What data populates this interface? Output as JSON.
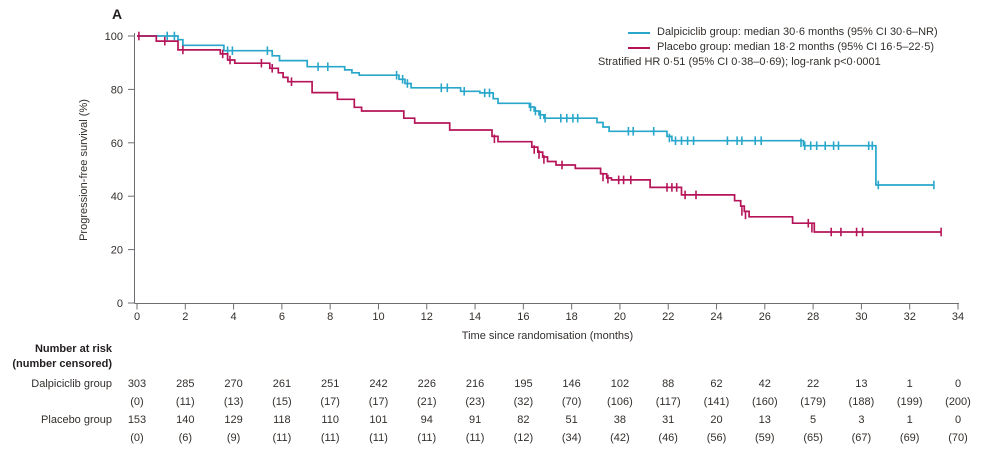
{
  "panel_label": "A",
  "colors": {
    "dalpiciclib": "#29a7cb",
    "placebo": "#b51458",
    "axis": "#6d6e71",
    "text": "#332f2c"
  },
  "legend": {
    "entries": [
      {
        "label": "Dalpiciclib group: median 30·6 months (95% CI 30·6–NR)",
        "color_key": "dalpiciclib"
      },
      {
        "label": "Placebo group: median 18·2 months (95% CI 16·5–22·5)",
        "color_key": "placebo"
      }
    ],
    "note": "Stratified HR 0·51 (95% CI 0·38–0·69); log-rank p<0·0001"
  },
  "chart_data": {
    "type": "line",
    "subtype": "kaplan-meier-step",
    "title": "",
    "xlabel": "Time since randomisation (months)",
    "ylabel": "Progression-free survival (%)",
    "xlim": [
      0,
      34
    ],
    "ylim": [
      0,
      100
    ],
    "xticks": [
      0,
      2,
      4,
      6,
      8,
      10,
      12,
      14,
      16,
      18,
      20,
      22,
      24,
      26,
      28,
      30,
      32,
      34
    ],
    "yticks": [
      0,
      20,
      40,
      60,
      80,
      100
    ],
    "grid": false,
    "legend_position": "top-right",
    "series": [
      {
        "name": "Dalpiciclib group",
        "color": "#29a7cb",
        "steps": [
          [
            0,
            100
          ],
          [
            1.7,
            98.6
          ],
          [
            1.9,
            96.5
          ],
          [
            3.6,
            94.5
          ],
          [
            5.6,
            92.6
          ],
          [
            5.9,
            90.8
          ],
          [
            7.05,
            88.5
          ],
          [
            8.6,
            87.3
          ],
          [
            8.9,
            86.2
          ],
          [
            9.2,
            85.3
          ],
          [
            10.85,
            83.8
          ],
          [
            11.1,
            82.2
          ],
          [
            11.35,
            80.6
          ],
          [
            13.4,
            79.3
          ],
          [
            14.2,
            78.7
          ],
          [
            14.75,
            76.5
          ],
          [
            14.95,
            74.8
          ],
          [
            16.25,
            73.4
          ],
          [
            16.45,
            71.9
          ],
          [
            16.65,
            70.5
          ],
          [
            16.85,
            69.2
          ],
          [
            19.05,
            67.6
          ],
          [
            19.3,
            65.9
          ],
          [
            19.55,
            64.3
          ],
          [
            21.95,
            62.4
          ],
          [
            22.15,
            60.8
          ],
          [
            27.6,
            58.9
          ],
          [
            30.6,
            44.2
          ],
          [
            33.0,
            44.2
          ]
        ],
        "censors": [
          [
            1.25,
            100
          ],
          [
            1.55,
            100
          ],
          [
            3.75,
            94.5
          ],
          [
            3.95,
            94.5
          ],
          [
            5.4,
            94.5
          ],
          [
            7.5,
            88.5
          ],
          [
            7.9,
            88.5
          ],
          [
            10.75,
            85.3
          ],
          [
            11.0,
            83.8
          ],
          [
            11.2,
            82.2
          ],
          [
            12.6,
            80.6
          ],
          [
            12.85,
            80.6
          ],
          [
            13.55,
            79.3
          ],
          [
            14.4,
            78.7
          ],
          [
            14.6,
            78.7
          ],
          [
            16.3,
            73.4
          ],
          [
            16.5,
            71.9
          ],
          [
            16.7,
            70.5
          ],
          [
            16.9,
            69.2
          ],
          [
            17.55,
            69.2
          ],
          [
            17.8,
            69.2
          ],
          [
            18.05,
            69.2
          ],
          [
            18.25,
            69.2
          ],
          [
            20.35,
            64.3
          ],
          [
            20.55,
            64.3
          ],
          [
            21.4,
            64.3
          ],
          [
            22.05,
            61.8
          ],
          [
            22.3,
            60.8
          ],
          [
            22.55,
            60.8
          ],
          [
            22.8,
            60.8
          ],
          [
            23.05,
            60.8
          ],
          [
            24.45,
            60.8
          ],
          [
            24.85,
            60.8
          ],
          [
            25.05,
            60.8
          ],
          [
            25.6,
            60.8
          ],
          [
            25.85,
            60.8
          ],
          [
            27.5,
            60.0
          ],
          [
            27.65,
            58.9
          ],
          [
            27.9,
            58.9
          ],
          [
            28.15,
            58.9
          ],
          [
            28.5,
            58.9
          ],
          [
            28.85,
            58.9
          ],
          [
            29.05,
            58.9
          ],
          [
            30.3,
            58.9
          ],
          [
            30.45,
            58.9
          ],
          [
            30.7,
            44.2
          ],
          [
            33.0,
            44.2
          ]
        ]
      },
      {
        "name": "Placebo group",
        "color": "#b51458",
        "steps": [
          [
            0,
            100
          ],
          [
            0.8,
            98.1
          ],
          [
            1.7,
            94.8
          ],
          [
            3.45,
            93.3
          ],
          [
            3.75,
            91.0
          ],
          [
            4.05,
            89.8
          ],
          [
            5.5,
            87.9
          ],
          [
            5.85,
            86.2
          ],
          [
            6.05,
            84.5
          ],
          [
            6.25,
            82.9
          ],
          [
            7.25,
            78.8
          ],
          [
            8.3,
            76.3
          ],
          [
            9.0,
            73.3
          ],
          [
            9.3,
            71.9
          ],
          [
            11.05,
            69.2
          ],
          [
            11.5,
            67.4
          ],
          [
            12.95,
            64.8
          ],
          [
            14.7,
            62.4
          ],
          [
            14.95,
            60.4
          ],
          [
            16.35,
            58.4
          ],
          [
            16.6,
            56.5
          ],
          [
            16.8,
            54.7
          ],
          [
            17.0,
            53.0
          ],
          [
            17.35,
            51.7
          ],
          [
            18.15,
            50.4
          ],
          [
            19.2,
            48.4
          ],
          [
            19.45,
            46.8
          ],
          [
            19.65,
            46.1
          ],
          [
            21.25,
            43.3
          ],
          [
            22.55,
            40.5
          ],
          [
            24.75,
            38.3
          ],
          [
            25.0,
            36.3
          ],
          [
            25.15,
            34.3
          ],
          [
            25.35,
            32.3
          ],
          [
            27.15,
            29.9
          ],
          [
            28.05,
            26.6
          ],
          [
            33.3,
            26.6
          ]
        ],
        "censors": [
          [
            0.08,
            100
          ],
          [
            1.15,
            98.1
          ],
          [
            1.9,
            94.8
          ],
          [
            3.55,
            93.3
          ],
          [
            3.85,
            91.0
          ],
          [
            5.15,
            89.8
          ],
          [
            5.6,
            87.9
          ],
          [
            6.4,
            82.9
          ],
          [
            14.8,
            61.5
          ],
          [
            16.45,
            57.5
          ],
          [
            16.65,
            55.6
          ],
          [
            16.85,
            53.8
          ],
          [
            17.6,
            51.7
          ],
          [
            19.3,
            47.2
          ],
          [
            19.5,
            46.4
          ],
          [
            19.95,
            46.1
          ],
          [
            20.15,
            46.1
          ],
          [
            20.45,
            46.1
          ],
          [
            21.95,
            43.3
          ],
          [
            22.15,
            43.3
          ],
          [
            22.35,
            43.3
          ],
          [
            22.7,
            40.5
          ],
          [
            23.15,
            40.5
          ],
          [
            25.05,
            34.3
          ],
          [
            25.2,
            33.0
          ],
          [
            27.8,
            29.9
          ],
          [
            27.95,
            28.0
          ],
          [
            28.75,
            26.6
          ],
          [
            29.15,
            26.6
          ],
          [
            29.8,
            26.6
          ],
          [
            30.05,
            26.6
          ],
          [
            33.3,
            26.6
          ]
        ]
      }
    ]
  },
  "risk_table": {
    "header_line1": "Number at risk",
    "header_line2": "(number censored)",
    "timepoints": [
      0,
      2,
      4,
      6,
      8,
      10,
      12,
      14,
      16,
      18,
      20,
      22,
      24,
      26,
      28,
      30,
      32,
      34
    ],
    "rows": [
      {
        "label": "Dalpiciclib group",
        "at_risk": [
          303,
          285,
          270,
          261,
          251,
          242,
          226,
          216,
          195,
          146,
          102,
          88,
          62,
          42,
          22,
          13,
          1,
          0
        ],
        "censored": [
          0,
          11,
          13,
          15,
          17,
          17,
          21,
          23,
          32,
          70,
          106,
          117,
          141,
          160,
          179,
          188,
          199,
          200
        ]
      },
      {
        "label": "Placebo group",
        "at_risk": [
          153,
          140,
          129,
          118,
          110,
          101,
          94,
          91,
          82,
          51,
          38,
          31,
          20,
          13,
          5,
          3,
          1,
          0
        ],
        "censored": [
          0,
          6,
          9,
          11,
          11,
          11,
          11,
          11,
          12,
          34,
          42,
          46,
          56,
          59,
          65,
          67,
          69,
          70
        ]
      }
    ]
  }
}
